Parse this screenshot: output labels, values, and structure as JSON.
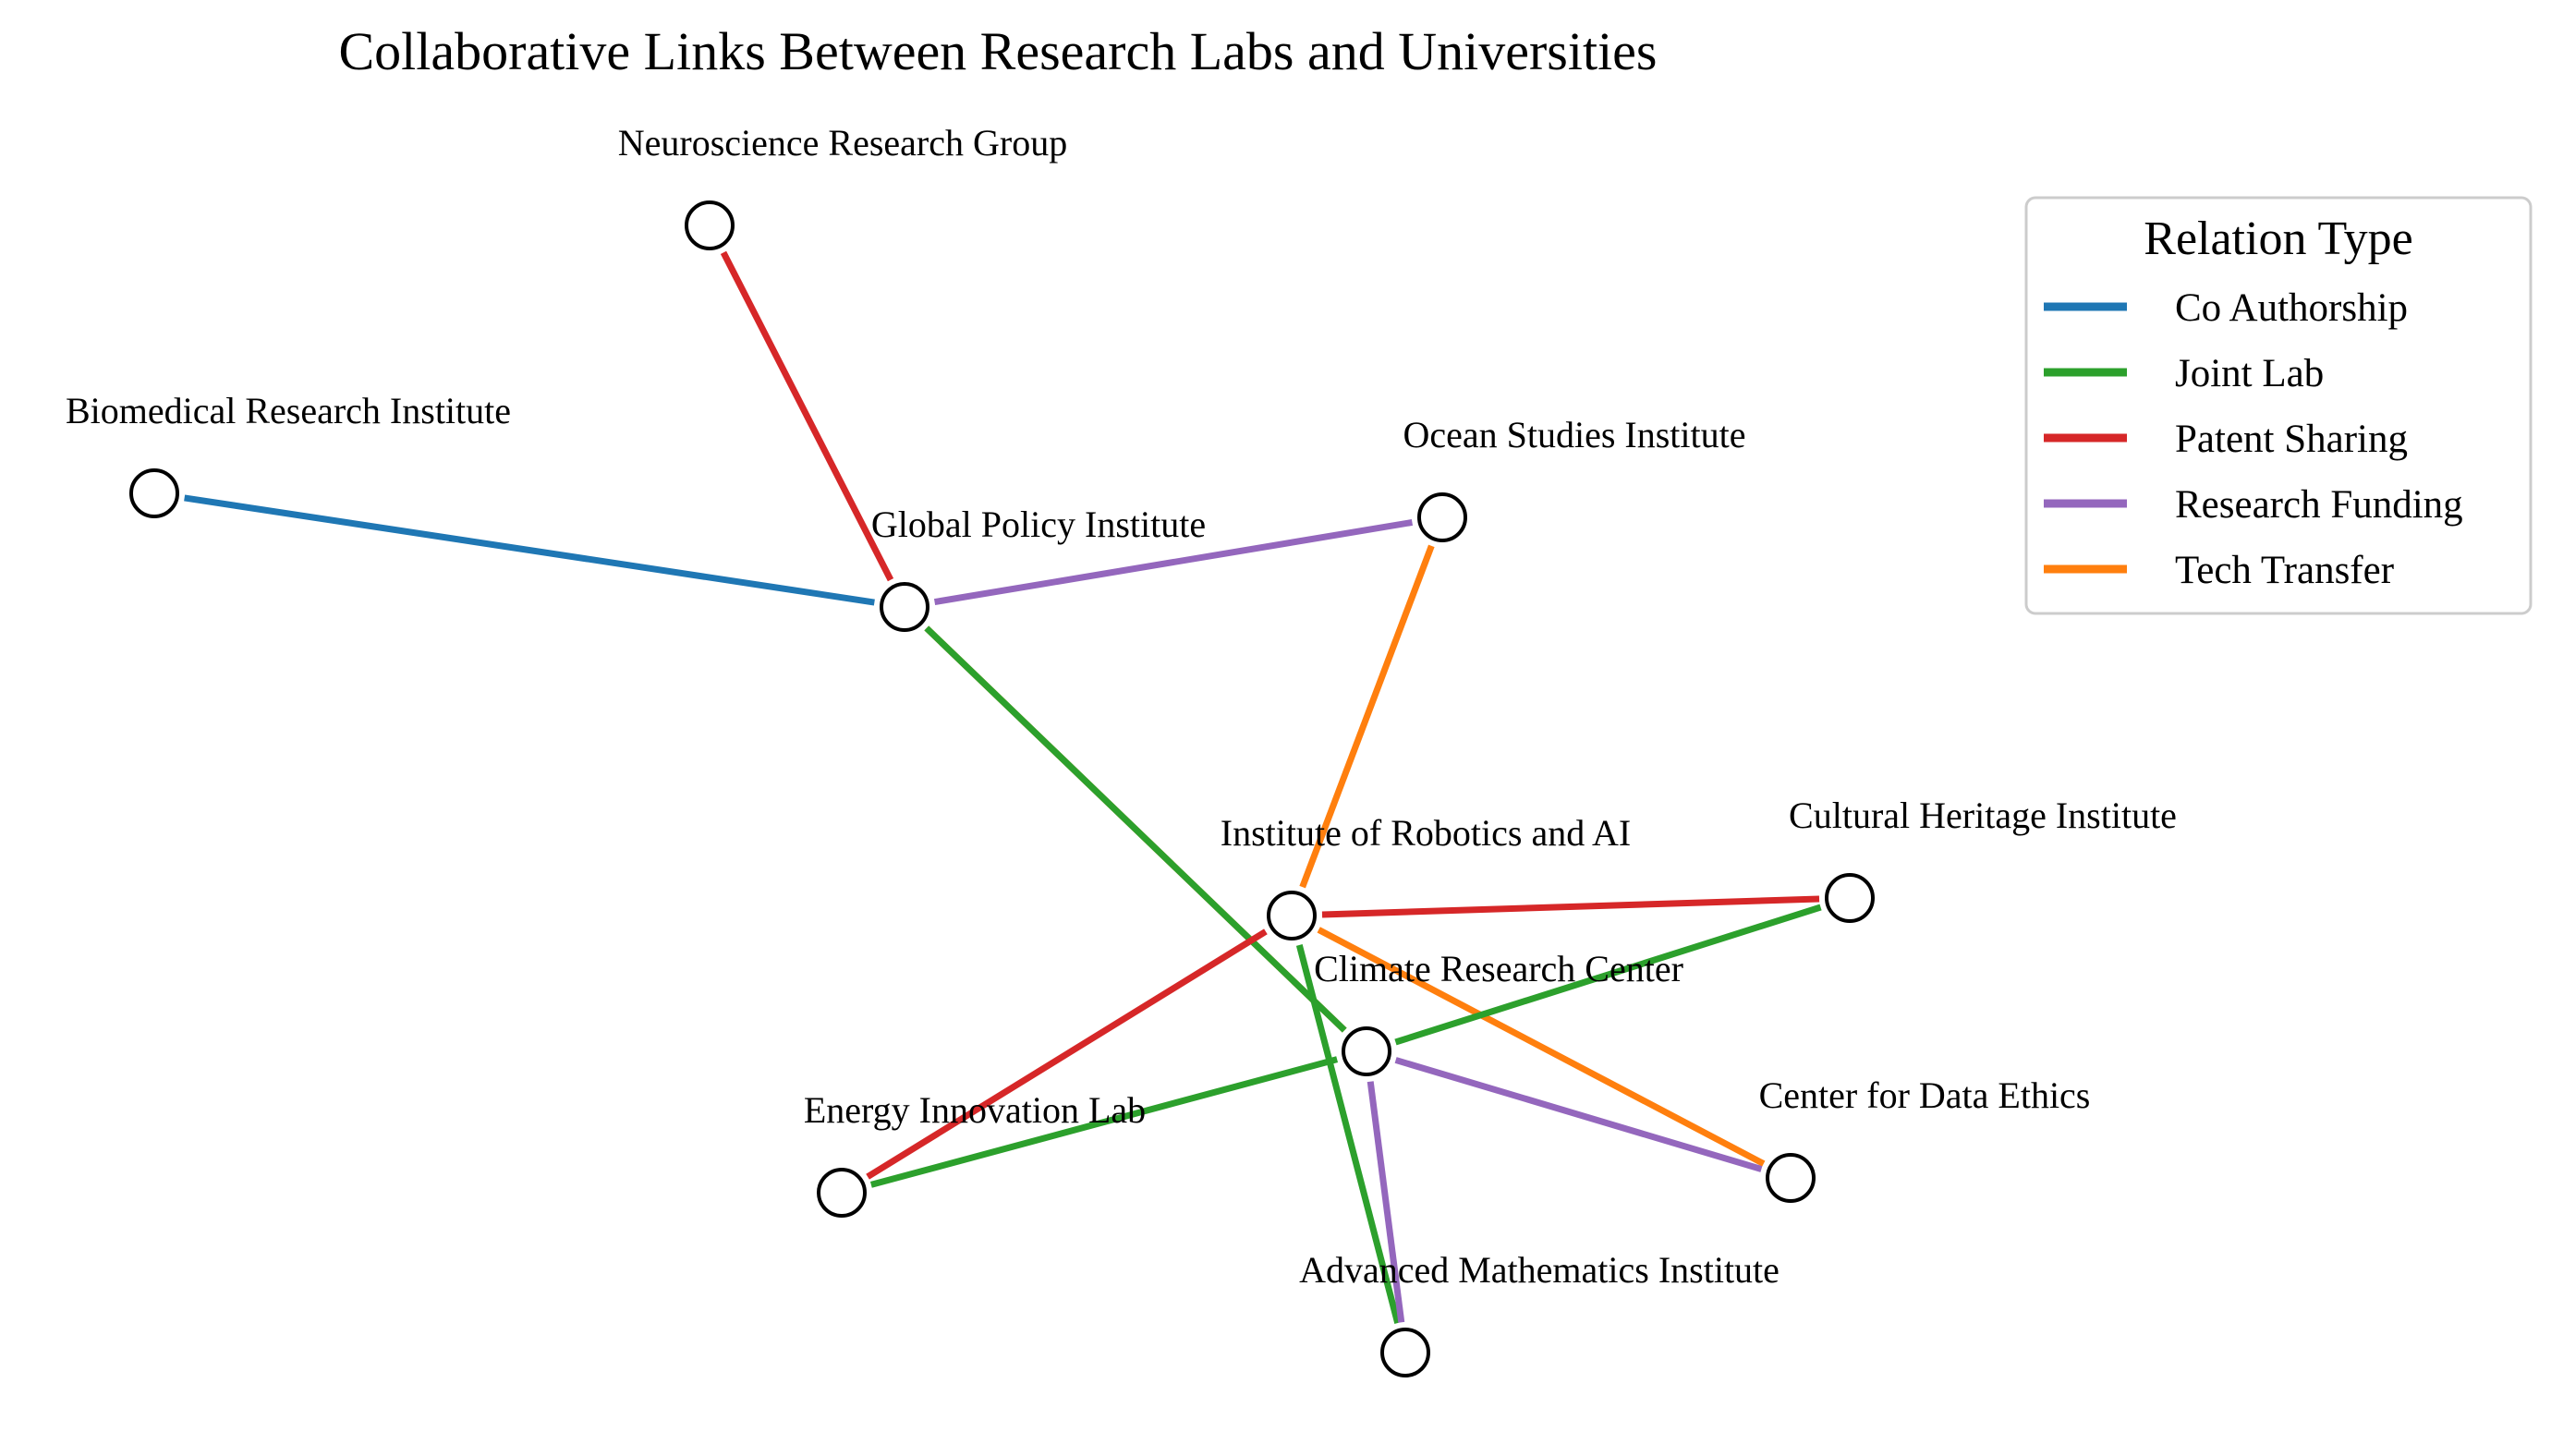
{
  "title": "Collaborative Links Between Research Labs and Universities",
  "colors": {
    "co_authorship": "#1f77b4",
    "joint_lab": "#2ca02c",
    "patent_sharing": "#d62728",
    "research_funding": "#9467bd",
    "tech_transfer": "#ff7f0e"
  },
  "legend": {
    "title": "Relation Type",
    "items": [
      {
        "key": "co_authorship",
        "label": "Co Authorship"
      },
      {
        "key": "joint_lab",
        "label": "Joint Lab"
      },
      {
        "key": "patent_sharing",
        "label": "Patent Sharing"
      },
      {
        "key": "research_funding",
        "label": "Research Funding"
      },
      {
        "key": "tech_transfer",
        "label": "Tech Transfer"
      }
    ]
  },
  "nodes": [
    {
      "id": "neuro",
      "label": "Neuroscience Research Group"
    },
    {
      "id": "biomed",
      "label": "Biomedical Research Institute"
    },
    {
      "id": "ocean",
      "label": "Ocean Studies Institute"
    },
    {
      "id": "policy",
      "label": "Global Policy Institute"
    },
    {
      "id": "robotics",
      "label": "Institute of Robotics and AI"
    },
    {
      "id": "heritage",
      "label": "Cultural Heritage Institute"
    },
    {
      "id": "climate",
      "label": "Climate Research Center"
    },
    {
      "id": "ethics",
      "label": "Center for Data Ethics"
    },
    {
      "id": "energy",
      "label": "Energy Innovation Lab"
    },
    {
      "id": "math",
      "label": "Advanced Mathematics Institute"
    }
  ],
  "edges": [
    {
      "source": "biomed",
      "target": "policy",
      "type": "co_authorship"
    },
    {
      "source": "neuro",
      "target": "policy",
      "type": "patent_sharing"
    },
    {
      "source": "policy",
      "target": "ocean",
      "type": "research_funding"
    },
    {
      "source": "policy",
      "target": "climate",
      "type": "tech_transfer"
    },
    {
      "source": "policy",
      "target": "climate",
      "type": "joint_lab"
    },
    {
      "source": "ocean",
      "target": "robotics",
      "type": "tech_transfer"
    },
    {
      "source": "robotics",
      "target": "heritage",
      "type": "patent_sharing"
    },
    {
      "source": "robotics",
      "target": "energy",
      "type": "patent_sharing"
    },
    {
      "source": "robotics",
      "target": "ethics",
      "type": "tech_transfer"
    },
    {
      "source": "robotics",
      "target": "math",
      "type": "joint_lab"
    },
    {
      "source": "climate",
      "target": "heritage",
      "type": "joint_lab"
    },
    {
      "source": "climate",
      "target": "energy",
      "type": "joint_lab"
    },
    {
      "source": "climate",
      "target": "ethics",
      "type": "research_funding"
    },
    {
      "source": "climate",
      "target": "math",
      "type": "research_funding"
    }
  ]
}
